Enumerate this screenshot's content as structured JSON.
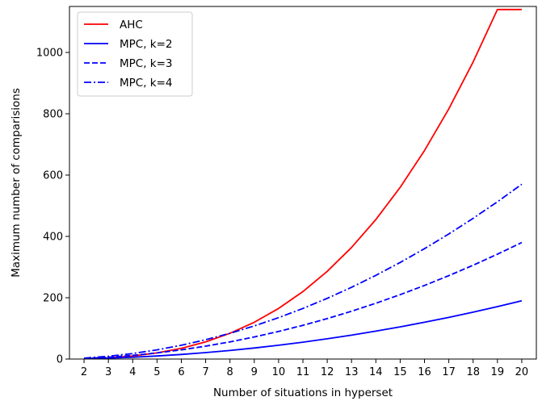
{
  "chart_data": {
    "type": "line",
    "title": "",
    "xlabel": "Number of situations in hyperset",
    "ylabel": "Maximum number of comparisions",
    "xlim": [
      1.4,
      20.6
    ],
    "ylim": [
      0,
      1150
    ],
    "x": [
      2,
      3,
      4,
      5,
      6,
      7,
      8,
      9,
      10,
      11,
      12,
      13,
      14,
      15,
      16,
      17,
      18,
      19,
      20
    ],
    "x_ticks": [
      "2",
      "3",
      "4",
      "5",
      "6",
      "7",
      "8",
      "9",
      "10",
      "11",
      "12",
      "13",
      "14",
      "15",
      "16",
      "17",
      "18",
      "19",
      "20"
    ],
    "y_ticks": [
      0,
      200,
      400,
      600,
      800,
      1000
    ],
    "grid": false,
    "legend_position": "top-left",
    "series": [
      {
        "name": "AHC",
        "color": "#ff0000",
        "style": "solid",
        "values": [
          1,
          4,
          10,
          20,
          35,
          56,
          84,
          120,
          165,
          220,
          286,
          364,
          455,
          560,
          680,
          816,
          969,
          1140,
          1140
        ]
      },
      {
        "name": "MPC, k=2",
        "color": "#0000ff",
        "style": "solid",
        "values": [
          1,
          3,
          6,
          10,
          15,
          21,
          28,
          36,
          45,
          55,
          66,
          78,
          91,
          105,
          120,
          136,
          153,
          171,
          190
        ]
      },
      {
        "name": "MPC, k=3",
        "color": "#0000ff",
        "style": "dashed",
        "values": [
          2,
          6,
          12,
          20,
          30,
          42,
          56,
          72,
          90,
          110,
          132,
          156,
          182,
          210,
          240,
          272,
          306,
          342,
          380
        ]
      },
      {
        "name": "MPC, k=4",
        "color": "#0000ff",
        "style": "dashdot",
        "values": [
          3,
          9,
          18,
          30,
          45,
          63,
          84,
          108,
          135,
          165,
          198,
          234,
          273,
          315,
          360,
          408,
          459,
          513,
          570
        ]
      }
    ]
  }
}
